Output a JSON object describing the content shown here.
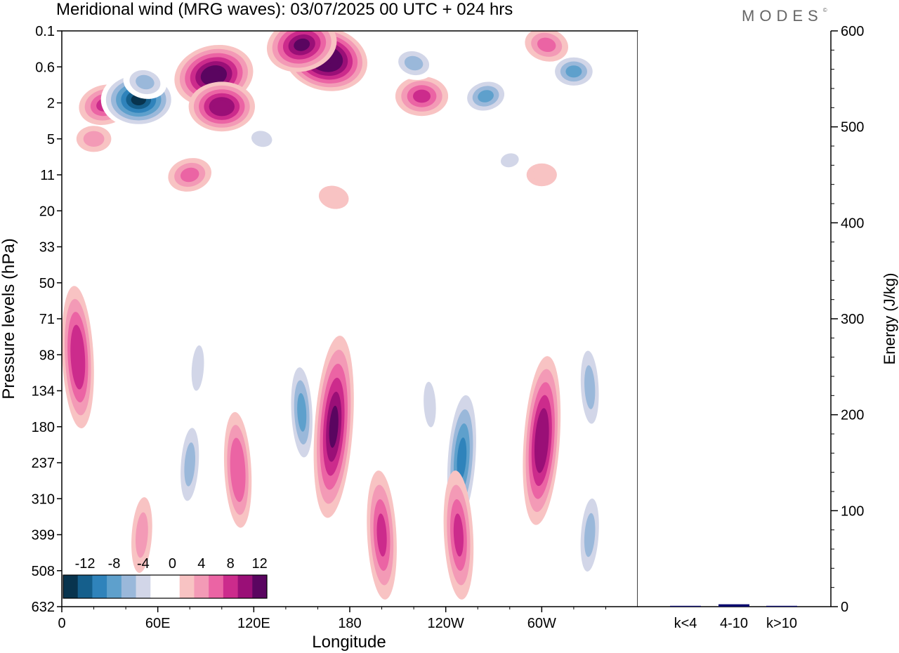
{
  "title": "Meridional wind (MRG waves):  03/07/2025  00 UTC  + 024 hrs",
  "brand": "MODES",
  "brand_mark": "©",
  "chart_data": [
    {
      "type": "heatmap",
      "title": "Meridional wind (MRG waves)",
      "valid_time": "03/07/2025  00 UTC  + 024 hrs",
      "xlabel": "Longitude",
      "ylabel": "Pressure levels (hPa)",
      "x_ticks": [
        "0",
        "60E",
        "120E",
        "180",
        "120W",
        "60W"
      ],
      "x_range": [
        0,
        360
      ],
      "y_levels": [
        "0.1",
        "0.6",
        "2",
        "5",
        "11",
        "20",
        "33",
        "50",
        "71",
        "98",
        "134",
        "180",
        "237",
        "310",
        "399",
        "508",
        "632"
      ],
      "colorbar": {
        "tick_labels": [
          "-12",
          "-8",
          "-4",
          "0",
          "4",
          "8",
          "12"
        ],
        "colors": [
          "#08344e",
          "#155f8c",
          "#2f83bb",
          "#5ea0cc",
          "#9ab8da",
          "#d2d6e8",
          "#ffffff",
          "#ffffff",
          "#f8c3c3",
          "#f39ab6",
          "#eb64a4",
          "#cc2b8c",
          "#9a0f77",
          "#5a0560"
        ]
      },
      "features": [
        {
          "lon": 27,
          "lev": 2.1,
          "v": 8
        },
        {
          "lon": 48,
          "lev": 1.8,
          "v": -13
        },
        {
          "lon": 52,
          "lev": 1.0,
          "v": -6
        },
        {
          "lon": 95,
          "lev": 0.8,
          "v": 14
        },
        {
          "lon": 100,
          "lev": 2.2,
          "v": 11
        },
        {
          "lon": 165,
          "lev": 0.4,
          "v": 15
        },
        {
          "lon": 150,
          "lev": 0.2,
          "v": 12
        },
        {
          "lon": 225,
          "lev": 1.6,
          "v": 8
        },
        {
          "lon": 220,
          "lev": 0.5,
          "v": -6
        },
        {
          "lon": 265,
          "lev": 1.6,
          "v": -7
        },
        {
          "lon": 320,
          "lev": 0.7,
          "v": -7
        },
        {
          "lon": 303,
          "lev": 0.2,
          "v": 6
        },
        {
          "lon": 80,
          "lev": 11.0,
          "v": 6
        },
        {
          "lon": 20,
          "lev": 5.0,
          "v": 4
        },
        {
          "lon": 125,
          "lev": 5.0,
          "v": -4
        },
        {
          "lon": 280,
          "lev": 8.0,
          "v": -3
        },
        {
          "lon": 300,
          "lev": 11.0,
          "v": 3
        },
        {
          "lon": 170,
          "lev": 16.0,
          "v": 3
        },
        {
          "lon": 10,
          "lev": 100,
          "v": 9
        },
        {
          "lon": 85,
          "lev": 110,
          "v": -4
        },
        {
          "lon": 110,
          "lev": 250,
          "v": 7
        },
        {
          "lon": 80,
          "lev": 240,
          "v": -6
        },
        {
          "lon": 150,
          "lev": 160,
          "v": -7
        },
        {
          "lon": 170,
          "lev": 180,
          "v": 12
        },
        {
          "lon": 200,
          "lev": 400,
          "v": 8
        },
        {
          "lon": 250,
          "lev": 230,
          "v": -10
        },
        {
          "lon": 248,
          "lev": 400,
          "v": 8
        },
        {
          "lon": 300,
          "lev": 200,
          "v": 11
        },
        {
          "lon": 330,
          "lev": 130,
          "v": -6
        },
        {
          "lon": 330,
          "lev": 400,
          "v": -6
        },
        {
          "lon": 230,
          "lev": 150,
          "v": -4
        },
        {
          "lon": 50,
          "lev": 400,
          "v": 4
        }
      ]
    },
    {
      "type": "bar",
      "ylabel": "Energy (J/kg)",
      "categories": [
        "k<4",
        "4-10",
        "k>10"
      ],
      "values": [
        0.2,
        2.5,
        0.2
      ],
      "ylim": [
        0,
        600
      ],
      "y_ticks": [
        "0",
        "100",
        "200",
        "300",
        "400",
        "500",
        "600"
      ],
      "bar_color": "#0a0a6e"
    }
  ]
}
